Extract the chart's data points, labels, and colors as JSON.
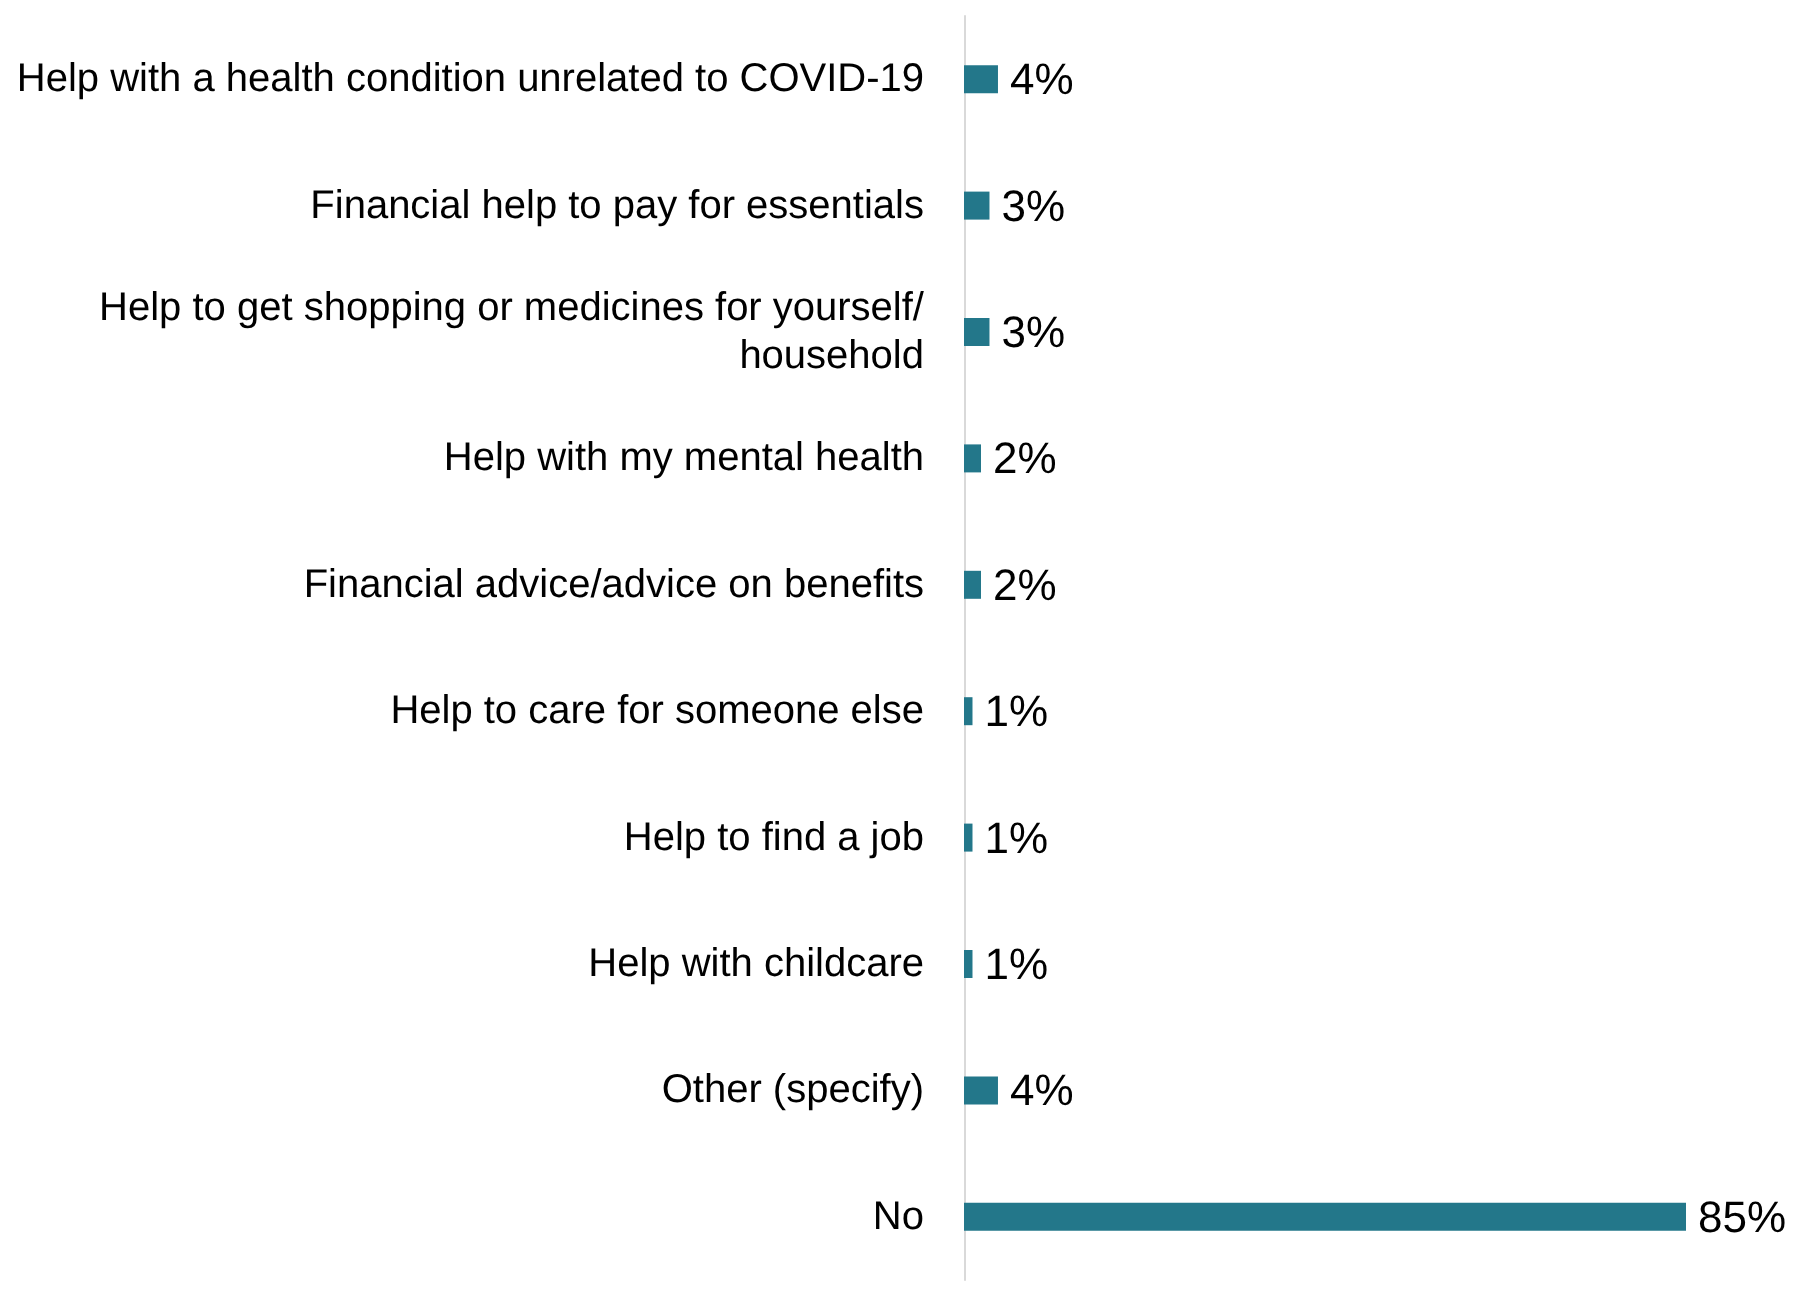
{
  "chart_data": {
    "type": "bar",
    "orientation": "horizontal",
    "categories": [
      "Help with a health condition unrelated to COVID-19",
      "Financial help to pay for essentials",
      "Help to get shopping or medicines for yourself/household",
      "Help with my mental health",
      "Financial advice/advice on benefits",
      "Help to care for someone else",
      "Help to find a job",
      "Help with childcare",
      "Other (specify)",
      "No"
    ],
    "values": [
      4,
      3,
      3,
      2,
      2,
      1,
      1,
      1,
      4,
      85
    ],
    "value_labels": [
      "4%",
      "3%",
      "3%",
      "2%",
      "2%",
      "1%",
      "1%",
      "1%",
      "4%",
      "85%"
    ],
    "color": "#23778a"
  }
}
